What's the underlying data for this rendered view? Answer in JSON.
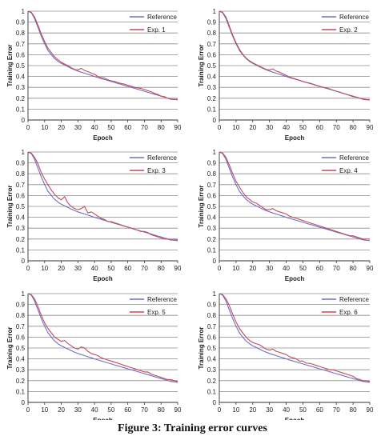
{
  "caption": "Figure 3: Training error curves",
  "colors": {
    "reference": "#6a72c2",
    "experiment": "#c24a5a",
    "grid": "#8c8c8c",
    "axis": "#333333",
    "text": "#222222"
  },
  "chart_data": [
    {
      "type": "line",
      "xlabel": "Epoch",
      "ylabel": "Training Error",
      "xlim": [
        0,
        90
      ],
      "ylim": [
        0,
        1
      ],
      "xticks": [
        "0",
        "10",
        "20",
        "30",
        "40",
        "50",
        "60",
        "70",
        "80",
        "90"
      ],
      "yticks": [
        "0",
        "0.1",
        "0.2",
        "0.3",
        "0.4",
        "0.5",
        "0.6",
        "0.7",
        "0.8",
        "0.9",
        "1"
      ],
      "legend_position": "top-right",
      "grid": true,
      "x": [
        0,
        2,
        4,
        6,
        8,
        10,
        12,
        14,
        16,
        18,
        20,
        22,
        24,
        26,
        28,
        30,
        32,
        34,
        36,
        38,
        40,
        42,
        44,
        46,
        48,
        50,
        52,
        54,
        56,
        58,
        60,
        62,
        64,
        66,
        68,
        70,
        72,
        74,
        76,
        78,
        80,
        82,
        84,
        86,
        88,
        90
      ],
      "series": [
        {
          "name": "Reference",
          "values": [
            1,
            0.985,
            0.93,
            0.85,
            0.77,
            0.7,
            0.64,
            0.6,
            0.565,
            0.54,
            0.52,
            0.505,
            0.49,
            0.475,
            0.462,
            0.45,
            0.44,
            0.43,
            0.42,
            0.41,
            0.4,
            0.39,
            0.381,
            0.372,
            0.363,
            0.354,
            0.345,
            0.336,
            0.327,
            0.318,
            0.309,
            0.3,
            0.291,
            0.282,
            0.273,
            0.264,
            0.255,
            0.246,
            0.237,
            0.228,
            0.219,
            0.21,
            0.201,
            0.193,
            0.188,
            0.185
          ]
        },
        {
          "name": "Exp. 1",
          "values": [
            1,
            0.99,
            0.945,
            0.87,
            0.79,
            0.72,
            0.66,
            0.62,
            0.58,
            0.555,
            0.53,
            0.515,
            0.5,
            0.48,
            0.465,
            0.46,
            0.475,
            0.455,
            0.445,
            0.43,
            0.42,
            0.4,
            0.39,
            0.385,
            0.37,
            0.36,
            0.355,
            0.345,
            0.335,
            0.33,
            0.32,
            0.31,
            0.3,
            0.295,
            0.29,
            0.28,
            0.27,
            0.26,
            0.245,
            0.235,
            0.22,
            0.215,
            0.2,
            0.19,
            0.19,
            0.19
          ]
        }
      ]
    },
    {
      "type": "line",
      "xlabel": "Epoch",
      "ylabel": "Training Error",
      "xlim": [
        0,
        90
      ],
      "ylim": [
        0,
        1
      ],
      "xticks": [
        "0",
        "10",
        "20",
        "30",
        "40",
        "50",
        "60",
        "70",
        "80",
        "90"
      ],
      "yticks": [
        "0",
        "0.1",
        "0.2",
        "0.3",
        "0.4",
        "0.5",
        "0.6",
        "0.7",
        "0.8",
        "0.9",
        "1"
      ],
      "legend_position": "top-right",
      "grid": true,
      "x": [
        0,
        2,
        4,
        6,
        8,
        10,
        12,
        14,
        16,
        18,
        20,
        22,
        24,
        26,
        28,
        30,
        32,
        34,
        36,
        38,
        40,
        42,
        44,
        46,
        48,
        50,
        52,
        54,
        56,
        58,
        60,
        62,
        64,
        66,
        68,
        70,
        72,
        74,
        76,
        78,
        80,
        82,
        84,
        86,
        88,
        90
      ],
      "series": [
        {
          "name": "Reference",
          "values": [
            1,
            0.985,
            0.93,
            0.85,
            0.77,
            0.7,
            0.64,
            0.6,
            0.565,
            0.54,
            0.52,
            0.505,
            0.49,
            0.475,
            0.462,
            0.45,
            0.44,
            0.43,
            0.42,
            0.41,
            0.4,
            0.39,
            0.381,
            0.372,
            0.363,
            0.354,
            0.345,
            0.336,
            0.327,
            0.318,
            0.309,
            0.3,
            0.291,
            0.282,
            0.273,
            0.264,
            0.255,
            0.246,
            0.237,
            0.228,
            0.219,
            0.21,
            0.201,
            0.193,
            0.188,
            0.185
          ]
        },
        {
          "name": "Exp. 2",
          "values": [
            1,
            0.99,
            0.945,
            0.865,
            0.78,
            0.71,
            0.65,
            0.605,
            0.57,
            0.545,
            0.525,
            0.51,
            0.495,
            0.48,
            0.465,
            0.46,
            0.47,
            0.45,
            0.44,
            0.425,
            0.41,
            0.395,
            0.385,
            0.375,
            0.365,
            0.355,
            0.345,
            0.34,
            0.33,
            0.32,
            0.31,
            0.3,
            0.295,
            0.285,
            0.275,
            0.265,
            0.255,
            0.245,
            0.235,
            0.225,
            0.215,
            0.21,
            0.2,
            0.19,
            0.185,
            0.185
          ]
        }
      ]
    },
    {
      "type": "line",
      "xlabel": "Epoch",
      "ylabel": "Training Error",
      "xlim": [
        0,
        90
      ],
      "ylim": [
        0,
        1
      ],
      "xticks": [
        "0",
        "10",
        "20",
        "30",
        "40",
        "50",
        "60",
        "70",
        "80",
        "90"
      ],
      "yticks": [
        "0",
        "0.1",
        "0.2",
        "0.3",
        "0.4",
        "0.5",
        "0.6",
        "0.7",
        "0.8",
        "0.9",
        "1"
      ],
      "legend_position": "top-right",
      "grid": true,
      "x": [
        0,
        2,
        4,
        6,
        8,
        10,
        12,
        14,
        16,
        18,
        20,
        22,
        24,
        26,
        28,
        30,
        32,
        34,
        36,
        38,
        40,
        42,
        44,
        46,
        48,
        50,
        52,
        54,
        56,
        58,
        60,
        62,
        64,
        66,
        68,
        70,
        72,
        74,
        76,
        78,
        80,
        82,
        84,
        86,
        88,
        90
      ],
      "series": [
        {
          "name": "Reference",
          "values": [
            1,
            0.985,
            0.93,
            0.85,
            0.77,
            0.7,
            0.64,
            0.6,
            0.565,
            0.54,
            0.52,
            0.505,
            0.49,
            0.475,
            0.462,
            0.45,
            0.44,
            0.43,
            0.42,
            0.41,
            0.4,
            0.39,
            0.381,
            0.372,
            0.363,
            0.354,
            0.345,
            0.336,
            0.327,
            0.318,
            0.309,
            0.3,
            0.291,
            0.282,
            0.273,
            0.264,
            0.255,
            0.246,
            0.237,
            0.228,
            0.219,
            0.21,
            0.201,
            0.193,
            0.188,
            0.185
          ]
        },
        {
          "name": "Exp. 3",
          "values": [
            1,
            0.99,
            0.95,
            0.89,
            0.81,
            0.75,
            0.7,
            0.65,
            0.61,
            0.58,
            0.56,
            0.59,
            0.53,
            0.5,
            0.48,
            0.47,
            0.48,
            0.5,
            0.44,
            0.45,
            0.43,
            0.41,
            0.39,
            0.38,
            0.36,
            0.36,
            0.35,
            0.34,
            0.33,
            0.32,
            0.31,
            0.3,
            0.29,
            0.28,
            0.27,
            0.27,
            0.26,
            0.24,
            0.23,
            0.22,
            0.21,
            0.2,
            0.2,
            0.19,
            0.2,
            0.19
          ]
        }
      ]
    },
    {
      "type": "line",
      "xlabel": "Epoch",
      "ylabel": "Training Error",
      "xlim": [
        0,
        90
      ],
      "ylim": [
        0,
        1
      ],
      "xticks": [
        "0",
        "10",
        "20",
        "30",
        "40",
        "50",
        "60",
        "70",
        "80",
        "90"
      ],
      "yticks": [
        "0",
        "0.1",
        "0.2",
        "0.3",
        "0.4",
        "0.5",
        "0.6",
        "0.7",
        "0.8",
        "0.9",
        "1"
      ],
      "legend_position": "top-right",
      "grid": true,
      "x": [
        0,
        2,
        4,
        6,
        8,
        10,
        12,
        14,
        16,
        18,
        20,
        22,
        24,
        26,
        28,
        30,
        32,
        34,
        36,
        38,
        40,
        42,
        44,
        46,
        48,
        50,
        52,
        54,
        56,
        58,
        60,
        62,
        64,
        66,
        68,
        70,
        72,
        74,
        76,
        78,
        80,
        82,
        84,
        86,
        88,
        90
      ],
      "series": [
        {
          "name": "Reference",
          "values": [
            1,
            0.985,
            0.93,
            0.85,
            0.77,
            0.7,
            0.64,
            0.6,
            0.565,
            0.54,
            0.52,
            0.505,
            0.49,
            0.475,
            0.462,
            0.45,
            0.44,
            0.43,
            0.42,
            0.41,
            0.4,
            0.39,
            0.381,
            0.372,
            0.363,
            0.354,
            0.345,
            0.336,
            0.327,
            0.318,
            0.309,
            0.3,
            0.291,
            0.282,
            0.273,
            0.264,
            0.255,
            0.246,
            0.237,
            0.228,
            0.219,
            0.21,
            0.201,
            0.193,
            0.188,
            0.185
          ]
        },
        {
          "name": "Exp. 4",
          "values": [
            1,
            0.99,
            0.95,
            0.88,
            0.8,
            0.73,
            0.68,
            0.63,
            0.59,
            0.565,
            0.54,
            0.53,
            0.51,
            0.49,
            0.47,
            0.47,
            0.48,
            0.46,
            0.45,
            0.44,
            0.43,
            0.41,
            0.4,
            0.39,
            0.38,
            0.37,
            0.36,
            0.35,
            0.34,
            0.33,
            0.32,
            0.31,
            0.3,
            0.29,
            0.28,
            0.27,
            0.26,
            0.25,
            0.24,
            0.23,
            0.23,
            0.22,
            0.21,
            0.2,
            0.2,
            0.2
          ]
        }
      ]
    },
    {
      "type": "line",
      "xlabel": "Epoch",
      "ylabel": "Training Error",
      "xlim": [
        0,
        90
      ],
      "ylim": [
        0,
        1
      ],
      "xticks": [
        "0",
        "10",
        "20",
        "30",
        "40",
        "50",
        "60",
        "70",
        "80",
        "90"
      ],
      "yticks": [
        "0",
        "0.1",
        "0.2",
        "0.3",
        "0.4",
        "0.5",
        "0.6",
        "0.7",
        "0.8",
        "0.9",
        "1"
      ],
      "legend_position": "top-right",
      "grid": true,
      "x": [
        0,
        2,
        4,
        6,
        8,
        10,
        12,
        14,
        16,
        18,
        20,
        22,
        24,
        26,
        28,
        30,
        32,
        34,
        36,
        38,
        40,
        42,
        44,
        46,
        48,
        50,
        52,
        54,
        56,
        58,
        60,
        62,
        64,
        66,
        68,
        70,
        72,
        74,
        76,
        78,
        80,
        82,
        84,
        86,
        88,
        90
      ],
      "series": [
        {
          "name": "Reference",
          "values": [
            1,
            0.985,
            0.93,
            0.85,
            0.77,
            0.7,
            0.64,
            0.6,
            0.565,
            0.54,
            0.52,
            0.505,
            0.49,
            0.475,
            0.462,
            0.45,
            0.44,
            0.43,
            0.42,
            0.41,
            0.4,
            0.39,
            0.381,
            0.372,
            0.363,
            0.354,
            0.345,
            0.336,
            0.327,
            0.318,
            0.309,
            0.3,
            0.291,
            0.282,
            0.273,
            0.264,
            0.255,
            0.246,
            0.237,
            0.228,
            0.219,
            0.21,
            0.201,
            0.193,
            0.188,
            0.185
          ]
        },
        {
          "name": "Exp. 5",
          "values": [
            1,
            0.99,
            0.95,
            0.88,
            0.8,
            0.73,
            0.68,
            0.64,
            0.6,
            0.58,
            0.56,
            0.57,
            0.54,
            0.52,
            0.5,
            0.49,
            0.51,
            0.5,
            0.47,
            0.45,
            0.44,
            0.43,
            0.41,
            0.4,
            0.39,
            0.38,
            0.37,
            0.36,
            0.35,
            0.34,
            0.33,
            0.32,
            0.31,
            0.3,
            0.29,
            0.28,
            0.28,
            0.26,
            0.25,
            0.24,
            0.23,
            0.22,
            0.21,
            0.21,
            0.2,
            0.19
          ]
        }
      ]
    },
    {
      "type": "line",
      "xlabel": "Epoch",
      "ylabel": "Training Error",
      "xlim": [
        0,
        90
      ],
      "ylim": [
        0,
        1
      ],
      "xticks": [
        "0",
        "10",
        "20",
        "30",
        "40",
        "50",
        "60",
        "70",
        "80",
        "90"
      ],
      "yticks": [
        "0",
        "0.1",
        "0.2",
        "0.3",
        "0.4",
        "0.5",
        "0.6",
        "0.7",
        "0.8",
        "0.9",
        "1"
      ],
      "legend_position": "top-right",
      "grid": true,
      "x": [
        0,
        2,
        4,
        6,
        8,
        10,
        12,
        14,
        16,
        18,
        20,
        22,
        24,
        26,
        28,
        30,
        32,
        34,
        36,
        38,
        40,
        42,
        44,
        46,
        48,
        50,
        52,
        54,
        56,
        58,
        60,
        62,
        64,
        66,
        68,
        70,
        72,
        74,
        76,
        78,
        80,
        82,
        84,
        86,
        88,
        90
      ],
      "series": [
        {
          "name": "Reference",
          "values": [
            1,
            0.985,
            0.93,
            0.85,
            0.77,
            0.7,
            0.64,
            0.6,
            0.565,
            0.54,
            0.52,
            0.505,
            0.49,
            0.475,
            0.462,
            0.45,
            0.44,
            0.43,
            0.42,
            0.41,
            0.4,
            0.39,
            0.381,
            0.372,
            0.363,
            0.354,
            0.345,
            0.336,
            0.327,
            0.318,
            0.309,
            0.3,
            0.291,
            0.282,
            0.273,
            0.264,
            0.255,
            0.246,
            0.237,
            0.228,
            0.219,
            0.21,
            0.201,
            0.193,
            0.188,
            0.185
          ]
        },
        {
          "name": "Exp. 6",
          "values": [
            1,
            0.99,
            0.95,
            0.89,
            0.81,
            0.74,
            0.68,
            0.64,
            0.6,
            0.57,
            0.55,
            0.54,
            0.53,
            0.51,
            0.49,
            0.48,
            0.49,
            0.47,
            0.46,
            0.45,
            0.44,
            0.42,
            0.41,
            0.4,
            0.38,
            0.38,
            0.36,
            0.36,
            0.35,
            0.34,
            0.33,
            0.32,
            0.31,
            0.3,
            0.3,
            0.29,
            0.28,
            0.27,
            0.26,
            0.25,
            0.24,
            0.22,
            0.21,
            0.2,
            0.2,
            0.19
          ]
        }
      ]
    }
  ]
}
